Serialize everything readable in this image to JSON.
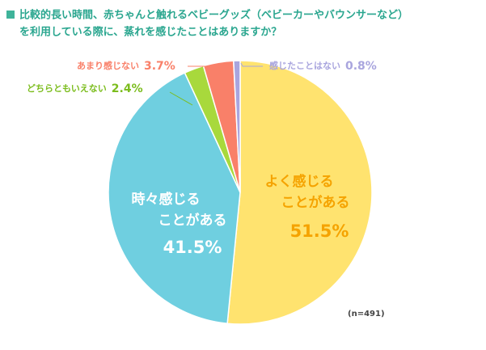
{
  "chart_data": {
    "type": "pie",
    "title": [
      "比較的長い時間、赤ちゃんと触れるベビーグッズ（ベビーカーやバウンサーなど）",
      "を利用している際に、蒸れを感じたことはありますか？"
    ],
    "categories": [
      [
        "よく感じる",
        "ことがある"
      ],
      [
        "時々感じる",
        "ことがある"
      ],
      [
        "どちらともいえない"
      ],
      [
        "あまり感じない"
      ],
      [
        "感じたことはない"
      ]
    ],
    "values": [
      51.5,
      41.5,
      2.4,
      3.7,
      0.8
    ],
    "value_labels": [
      "51.5%",
      "41.5%",
      "2.4%",
      "3.7%",
      "0.8%"
    ],
    "colors": [
      "#ffe36f",
      "#6fcfe0",
      "#a8d93c",
      "#f98069",
      "#a9a5de"
    ],
    "note": "(n=491)"
  }
}
